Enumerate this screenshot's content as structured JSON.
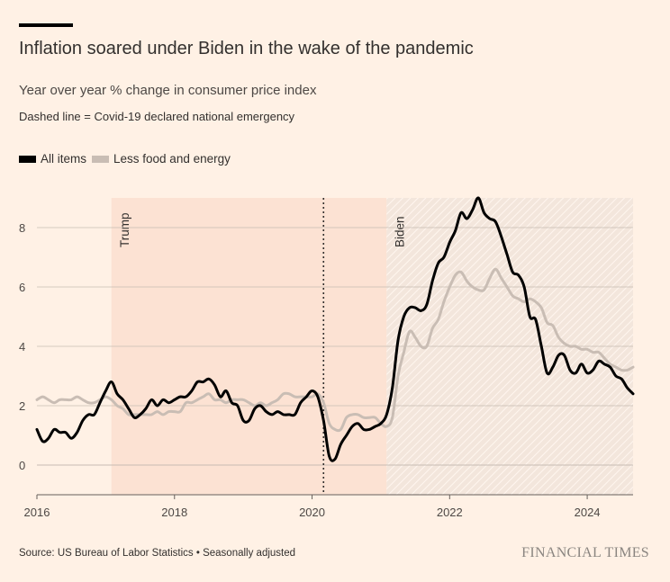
{
  "header": {
    "title": "Inflation soared under Biden in the wake of the pandemic",
    "subtitle": "Year over year % change in consumer price index",
    "note": "Dashed line = Covid-19 declared national emergency"
  },
  "footer": {
    "source": "Source: US Bureau of Labor Statistics • Seasonally adjusted",
    "logo": "FINANCIAL TIMES"
  },
  "colors": {
    "background": "#fff1e5",
    "all_items": "#000000",
    "core": "#c9bdb4",
    "trump_shade": "#fce2d3",
    "biden_shade": "#f3e6dc",
    "gridline": "#c7bcb3"
  },
  "chart_data": {
    "type": "line",
    "title": "Inflation soared under Biden in the wake of the pandemic",
    "subtitle": "Year over year % change in consumer price index",
    "xlabel": "",
    "ylabel": "",
    "xlim": [
      "2016-01",
      "2024-09"
    ],
    "ylim": [
      -1,
      9
    ],
    "grid": true,
    "legend_position": "top-left",
    "x_ticks": [
      "2016",
      "2018",
      "2020",
      "2022",
      "2024"
    ],
    "y_ticks": [
      0,
      2,
      4,
      6,
      8
    ],
    "annotations": {
      "covid_emergency": "2020-03",
      "eras": [
        {
          "label": "Trump",
          "start": "2017-02",
          "end": "2021-01",
          "color": "#fce2d3",
          "hatched": false
        },
        {
          "label": "Biden",
          "start": "2021-02",
          "end": "2024-09",
          "color": "#f3e6dc",
          "hatched": true
        }
      ]
    },
    "series": [
      {
        "name": "All items",
        "color": "#000000",
        "start": "2016-01",
        "values": [
          1.2,
          0.8,
          0.9,
          1.2,
          1.1,
          1.1,
          0.9,
          1.1,
          1.5,
          1.7,
          1.7,
          2.1,
          2.5,
          2.8,
          2.4,
          2.2,
          1.9,
          1.6,
          1.7,
          1.9,
          2.2,
          2.0,
          2.2,
          2.1,
          2.2,
          2.3,
          2.3,
          2.5,
          2.8,
          2.8,
          2.9,
          2.7,
          2.3,
          2.5,
          2.1,
          2.0,
          1.5,
          1.5,
          1.9,
          2.0,
          1.8,
          1.7,
          1.8,
          1.7,
          1.7,
          1.7,
          2.1,
          2.3,
          2.5,
          2.3,
          1.5,
          0.3,
          0.2,
          0.7,
          1.0,
          1.3,
          1.4,
          1.2,
          1.2,
          1.3,
          1.4,
          1.7,
          2.6,
          4.2,
          5.0,
          5.3,
          5.3,
          5.2,
          5.4,
          6.2,
          6.8,
          7.0,
          7.5,
          7.9,
          8.5,
          8.3,
          8.6,
          9.0,
          8.5,
          8.3,
          8.2,
          7.7,
          7.1,
          6.5,
          6.4,
          6.0,
          5.0,
          4.9,
          4.0,
          3.1,
          3.3,
          3.7,
          3.7,
          3.2,
          3.1,
          3.4,
          3.1,
          3.2,
          3.5,
          3.4,
          3.3,
          3.0,
          2.9,
          2.6,
          2.4
        ]
      },
      {
        "name": "Less food and energy",
        "color": "#c9bdb4",
        "start": "2016-01",
        "values": [
          2.2,
          2.3,
          2.2,
          2.1,
          2.2,
          2.2,
          2.2,
          2.3,
          2.2,
          2.1,
          2.1,
          2.2,
          2.3,
          2.2,
          2.0,
          1.9,
          1.7,
          1.7,
          1.7,
          1.7,
          1.7,
          1.8,
          1.7,
          1.8,
          1.8,
          1.8,
          2.1,
          2.1,
          2.2,
          2.3,
          2.4,
          2.2,
          2.2,
          2.1,
          2.2,
          2.2,
          2.2,
          2.1,
          2.0,
          2.1,
          2.0,
          2.1,
          2.2,
          2.4,
          2.4,
          2.3,
          2.3,
          2.3,
          2.3,
          2.4,
          2.1,
          1.4,
          1.2,
          1.2,
          1.6,
          1.7,
          1.7,
          1.6,
          1.6,
          1.6,
          1.4,
          1.3,
          1.6,
          3.0,
          3.8,
          4.5,
          4.3,
          4.0,
          4.0,
          4.6,
          4.9,
          5.5,
          6.0,
          6.4,
          6.5,
          6.2,
          6.0,
          5.9,
          5.9,
          6.3,
          6.6,
          6.3,
          6.0,
          5.7,
          5.6,
          5.5,
          5.6,
          5.5,
          5.3,
          4.8,
          4.7,
          4.3,
          4.1,
          4.0,
          4.0,
          3.9,
          3.9,
          3.8,
          3.8,
          3.6,
          3.4,
          3.3,
          3.2,
          3.2,
          3.3
        ]
      }
    ]
  }
}
